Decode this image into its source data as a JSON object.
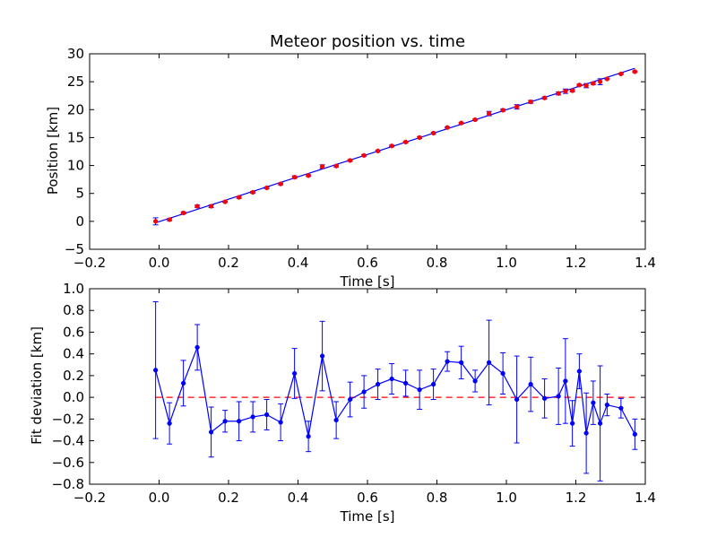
{
  "chart_data": [
    {
      "type": "scatter",
      "title": "Meteor position vs. time",
      "xlabel": "Time [s]",
      "ylabel": "Position [km]",
      "xlim": [
        -0.2,
        1.4
      ],
      "ylim": [
        -5,
        30
      ],
      "xticks": [
        -0.2,
        0.0,
        0.2,
        0.4,
        0.6,
        0.8,
        1.0,
        1.2,
        1.4
      ],
      "xtick_labels": [
        "−0.2",
        "0.0",
        "0.2",
        "0.4",
        "0.6",
        "0.8",
        "1.0",
        "1.2",
        "1.4"
      ],
      "yticks": [
        -5,
        0,
        5,
        10,
        15,
        20,
        25,
        30
      ],
      "ytick_labels": [
        "−5",
        "0",
        "5",
        "10",
        "15",
        "20",
        "25",
        "30"
      ],
      "grid": false,
      "fit_line": {
        "x": [
          -0.01,
          1.37
        ],
        "y": [
          -0.25,
          27.4
        ],
        "color": "#0000ff"
      },
      "series": [
        {
          "color": "#ff0000",
          "x": [
            -0.01,
            0.03,
            0.07,
            0.11,
            0.15,
            0.19,
            0.23,
            0.27,
            0.31,
            0.35,
            0.39,
            0.43,
            0.47,
            0.51,
            0.55,
            0.59,
            0.63,
            0.67,
            0.71,
            0.75,
            0.79,
            0.83,
            0.87,
            0.91,
            0.95,
            0.99,
            1.03,
            1.07,
            1.11,
            1.15,
            1.17,
            1.19,
            1.21,
            1.23,
            1.25,
            1.27,
            1.29,
            1.33,
            1.37
          ],
          "y": [
            0.0,
            0.3,
            1.5,
            2.7,
            2.7,
            3.5,
            4.3,
            5.2,
            6.0,
            6.7,
            7.9,
            8.2,
            9.8,
            9.9,
            10.9,
            11.8,
            12.6,
            13.5,
            14.2,
            15.0,
            15.8,
            16.8,
            17.6,
            18.2,
            19.3,
            19.9,
            20.5,
            21.4,
            22.1,
            22.9,
            23.3,
            23.4,
            24.4,
            24.3,
            24.7,
            25.0,
            25.5,
            26.4,
            26.8
          ],
          "err": [
            0.63,
            0.19,
            0.21,
            0.21,
            0.23,
            0.1,
            0.18,
            0.14,
            0.14,
            0.17,
            0.23,
            0.14,
            0.32,
            0.17,
            0.16,
            0.15,
            0.14,
            0.14,
            0.12,
            0.18,
            0.14,
            0.09,
            0.15,
            0.1,
            0.39,
            0.19,
            0.4,
            0.25,
            0.18,
            0.26,
            0.39,
            0.21,
            0.16,
            0.37,
            0.2,
            0.53,
            0.1,
            0.09,
            0.14
          ]
        }
      ]
    },
    {
      "type": "line",
      "title": "",
      "xlabel": "Time [s]",
      "ylabel": "Fit deviation [km]",
      "xlim": [
        -0.2,
        1.4
      ],
      "ylim": [
        -0.8,
        1.0
      ],
      "xticks": [
        -0.2,
        0.0,
        0.2,
        0.4,
        0.6,
        0.8,
        1.0,
        1.2,
        1.4
      ],
      "xtick_labels": [
        "−0.2",
        "0.0",
        "0.2",
        "0.4",
        "0.6",
        "0.8",
        "1.0",
        "1.2",
        "1.4"
      ],
      "yticks": [
        -0.8,
        -0.6,
        -0.4,
        -0.2,
        0.0,
        0.2,
        0.4,
        0.6,
        0.8,
        1.0
      ],
      "ytick_labels": [
        "−0.8",
        "−0.6",
        "−0.4",
        "−0.2",
        "0.0",
        "0.2",
        "0.4",
        "0.6",
        "0.8",
        "1.0"
      ],
      "grid": false,
      "zero_line": {
        "y": 0.0,
        "color": "#ff0000",
        "style": "dashed"
      },
      "series": [
        {
          "color": "#0000ff",
          "x": [
            -0.01,
            0.03,
            0.07,
            0.11,
            0.15,
            0.19,
            0.23,
            0.27,
            0.31,
            0.35,
            0.39,
            0.43,
            0.47,
            0.51,
            0.55,
            0.59,
            0.63,
            0.67,
            0.71,
            0.75,
            0.79,
            0.83,
            0.87,
            0.91,
            0.95,
            0.99,
            1.03,
            1.07,
            1.11,
            1.15,
            1.17,
            1.19,
            1.21,
            1.23,
            1.25,
            1.27,
            1.29,
            1.33,
            1.37
          ],
          "y": [
            0.25,
            -0.24,
            0.13,
            0.46,
            -0.32,
            -0.22,
            -0.22,
            -0.18,
            -0.16,
            -0.23,
            0.22,
            -0.36,
            0.38,
            -0.21,
            -0.02,
            0.05,
            0.12,
            0.17,
            0.13,
            0.07,
            0.12,
            0.33,
            0.32,
            0.15,
            0.32,
            0.22,
            -0.02,
            0.12,
            -0.01,
            0.01,
            0.15,
            -0.24,
            0.24,
            -0.33,
            -0.05,
            -0.24,
            -0.07,
            -0.1,
            -0.34
          ],
          "err": [
            0.63,
            0.19,
            0.21,
            0.21,
            0.23,
            0.1,
            0.18,
            0.14,
            0.14,
            0.17,
            0.23,
            0.14,
            0.32,
            0.17,
            0.16,
            0.15,
            0.14,
            0.14,
            0.12,
            0.18,
            0.14,
            0.09,
            0.15,
            0.1,
            0.39,
            0.19,
            0.4,
            0.25,
            0.18,
            0.26,
            0.39,
            0.21,
            0.16,
            0.37,
            0.2,
            0.53,
            0.1,
            0.09,
            0.14
          ]
        }
      ]
    }
  ]
}
